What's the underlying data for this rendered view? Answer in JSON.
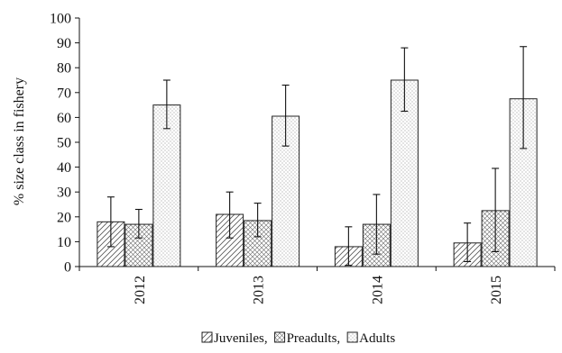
{
  "chart_data": {
    "type": "bar",
    "title": "",
    "xlabel": "",
    "ylabel": "% size class in fishery",
    "ylim": [
      0,
      100
    ],
    "yticks": [
      0,
      10,
      20,
      30,
      40,
      50,
      60,
      70,
      80,
      90,
      100
    ],
    "categories": [
      "2012",
      "2013",
      "2014",
      "2015"
    ],
    "series": [
      {
        "name": "Juveniles",
        "values": [
          18,
          21,
          8,
          9.5
        ],
        "error_low": [
          8,
          11.5,
          0.5,
          2
        ],
        "error_high": [
          28,
          30,
          16,
          17.5
        ]
      },
      {
        "name": "Preadults",
        "values": [
          17,
          18.5,
          17,
          22.5
        ],
        "error_low": [
          11.5,
          12,
          5,
          6
        ],
        "error_high": [
          23,
          25.5,
          29,
          39.5
        ]
      },
      {
        "name": "Adults",
        "values": [
          65,
          60.5,
          75,
          67.5
        ],
        "error_low": [
          55.5,
          48.5,
          62.5,
          47.5
        ],
        "error_high": [
          75,
          73,
          88,
          88.5
        ]
      }
    ],
    "legend": {
      "position": "bottom-center",
      "entries": [
        "Juveniles,",
        "Preadults,",
        "Adults"
      ]
    },
    "grid": false
  }
}
